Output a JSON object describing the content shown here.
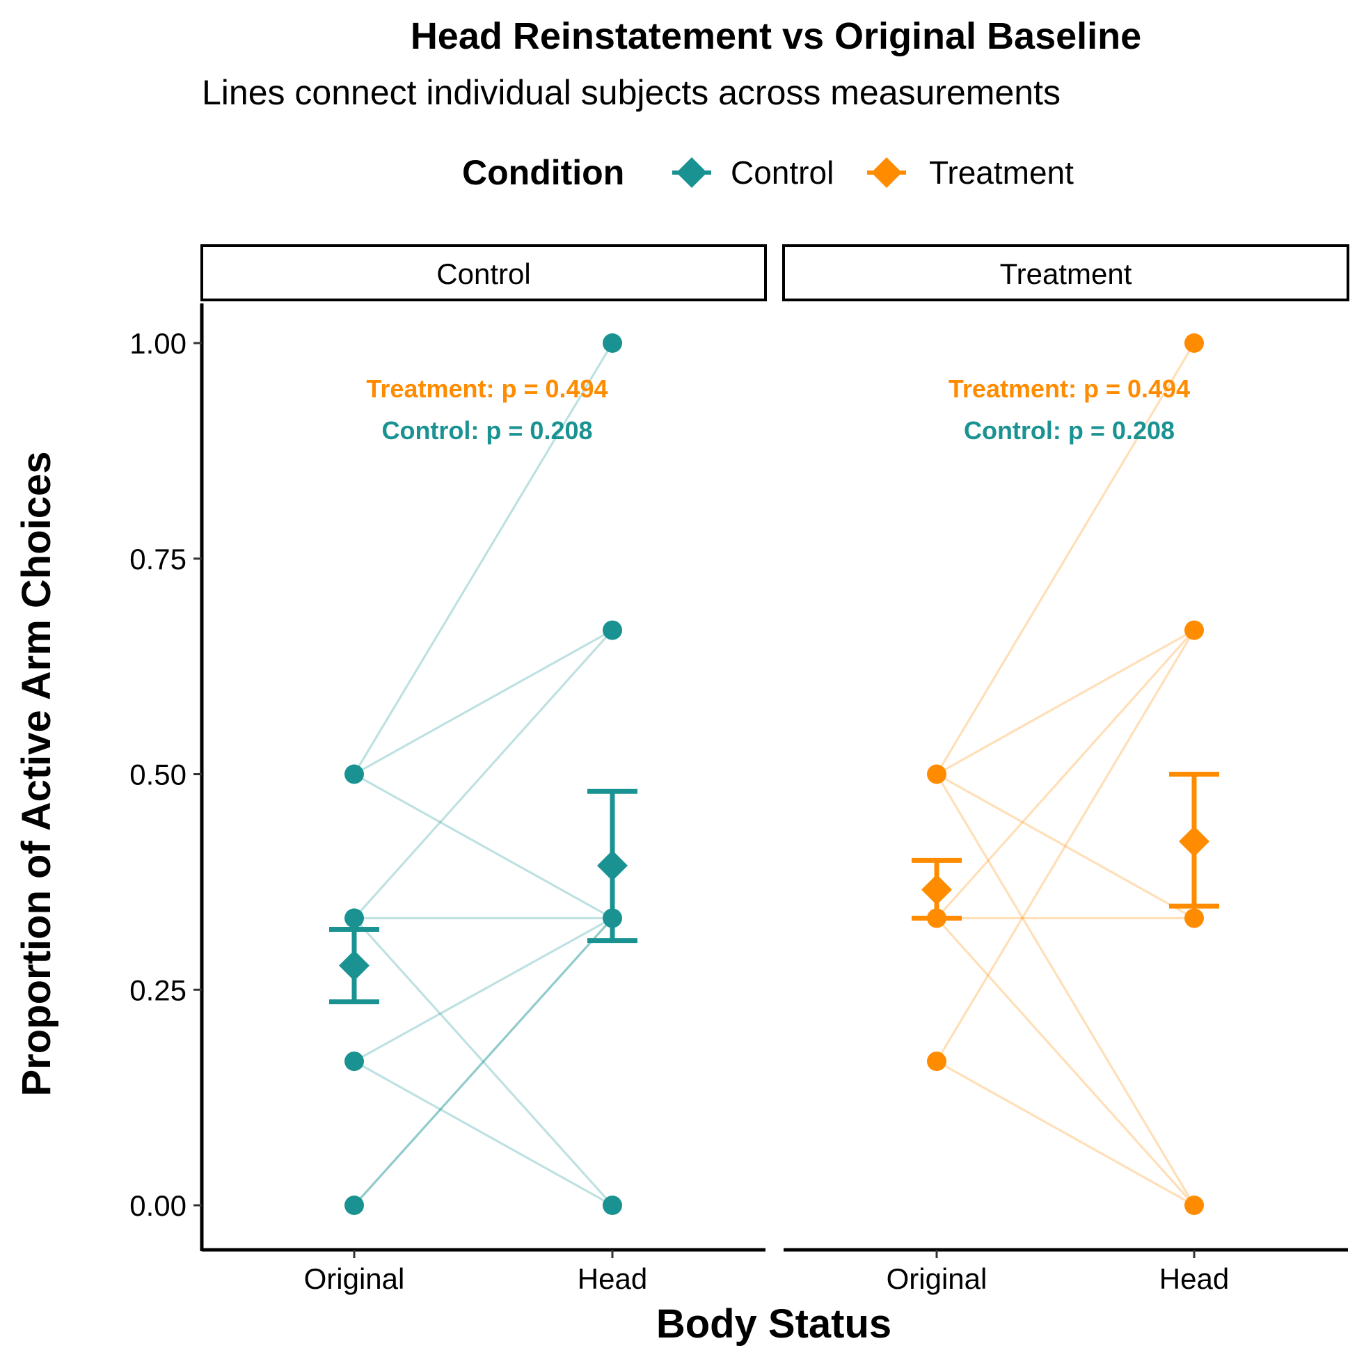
{
  "chart_data": {
    "type": "scatter",
    "title": "Head Reinstatement vs Original Baseline",
    "subtitle": "Lines connect individual subjects across measurements",
    "xlabel": "Body Status",
    "ylabel": "Proportion of Active Arm Choices",
    "categories": [
      "Original",
      "Head"
    ],
    "ylim": [
      0,
      1
    ],
    "yticks": [
      0,
      0.25,
      0.5,
      0.75,
      1
    ],
    "ytick_labels": [
      "0.00",
      "0.25",
      "0.50",
      "0.75",
      "1.00"
    ],
    "grid": false,
    "legend": {
      "title": "Condition",
      "placement": "top",
      "entries": [
        {
          "label": "Control",
          "color": "#1a9292"
        },
        {
          "label": "Treatment",
          "color": "#ff8c00"
        }
      ]
    },
    "panels": [
      {
        "label": "Control",
        "color": "#1a9292",
        "subjects": [
          [
            0.5,
            1.0
          ],
          [
            0.5,
            0.667
          ],
          [
            0.5,
            0.333
          ],
          [
            0.333,
            0.333
          ],
          [
            0.333,
            0.667
          ],
          [
            0.333,
            0.0
          ],
          [
            0.167,
            0.333
          ],
          [
            0.167,
            0.0
          ],
          [
            0.0,
            0.333
          ],
          [
            0.0,
            0.333
          ]
        ],
        "means": [
          {
            "x": "Original",
            "mean": 0.278,
            "lower": 0.236,
            "upper": 0.32
          },
          {
            "x": "Head",
            "mean": 0.394,
            "lower": 0.307,
            "upper": 0.48
          }
        ],
        "annotations": [
          {
            "text": "Treatment: p = 0.494",
            "color": "#ff8c00"
          },
          {
            "text": "Control: p = 0.208",
            "color": "#1a9292"
          }
        ]
      },
      {
        "label": "Treatment",
        "color": "#ff8c00",
        "subjects": [
          [
            0.5,
            1.0
          ],
          [
            0.5,
            0.667
          ],
          [
            0.5,
            0.333
          ],
          [
            0.5,
            0.0
          ],
          [
            0.333,
            0.667
          ],
          [
            0.333,
            0.333
          ],
          [
            0.333,
            0.0
          ],
          [
            0.167,
            0.667
          ],
          [
            0.167,
            0.0
          ]
        ],
        "means": [
          {
            "x": "Original",
            "mean": 0.366,
            "lower": 0.333,
            "upper": 0.4
          },
          {
            "x": "Head",
            "mean": 0.422,
            "lower": 0.347,
            "upper": 0.5
          }
        ],
        "annotations": [
          {
            "text": "Treatment: p = 0.494",
            "color": "#ff8c00"
          },
          {
            "text": "Control: p = 0.208",
            "color": "#1a9292"
          }
        ]
      }
    ]
  }
}
